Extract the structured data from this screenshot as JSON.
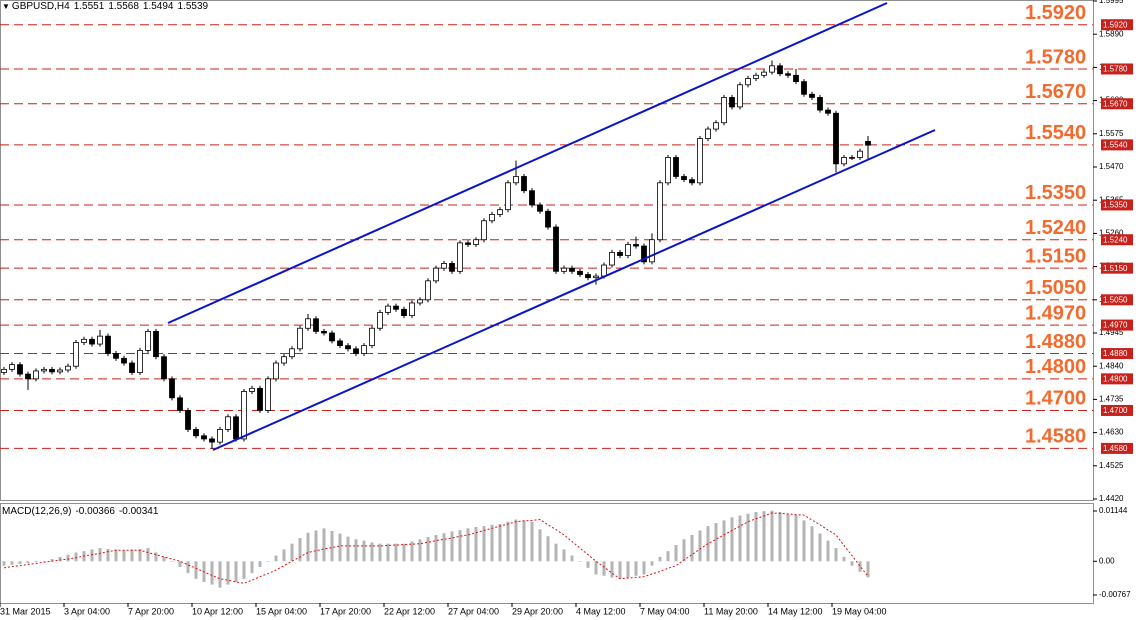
{
  "chart_data": [
    {
      "type": "candlestick",
      "title": "GBPUSD,H4",
      "readout": [
        1.5551,
        1.5568,
        1.5494,
        1.5539
      ],
      "up_color": "#ffffff",
      "down_color": "#000000",
      "line_color": "#000000",
      "level_color": "#c8201a",
      "level_label_color": "#f26a2e",
      "ylim": [
        1.442,
        1.5995
      ],
      "yticks": [
        1.5995,
        {
          "value": 1.589,
          "label": "1.5890"
        },
        1.5785,
        {
          "value": 1.568,
          "label": "1.5680"
        },
        1.5575,
        {
          "value": 1.547,
          "label": "1.5470"
        },
        1.5365,
        {
          "value": 1.526,
          "label": "1.5260"
        },
        1.5155,
        {
          "value": 1.505,
          "label": "1.5050"
        },
        1.4945,
        {
          "value": 1.484,
          "label": "1.4840"
        },
        1.4735,
        {
          "value": 1.463,
          "label": "1.4630"
        },
        1.4525,
        {
          "value": 1.442,
          "label": "1.4420"
        }
      ],
      "levels": [
        {
          "value": 1.592,
          "label": "1.5920"
        },
        {
          "value": 1.578,
          "label": "1.5780"
        },
        {
          "value": 1.567,
          "label": "1.5670"
        },
        {
          "value": 1.554,
          "label": "1.5540"
        },
        {
          "value": 1.535,
          "label": "1.5350"
        },
        {
          "value": 1.524,
          "label": "1.5240"
        },
        {
          "value": 1.515,
          "label": "1.5150"
        },
        {
          "value": 1.505,
          "label": "1.5050"
        },
        {
          "value": 1.497,
          "label": "1.4970"
        },
        {
          "value": 1.488,
          "label": "1.4880"
        },
        {
          "value": 1.48,
          "label": "1.4800"
        },
        {
          "value": 1.47,
          "label": "1.4700"
        },
        {
          "value": 1.458,
          "label": "1.4580"
        }
      ],
      "categories": [
        "31 Mar 2015",
        null,
        null,
        null,
        null,
        null,
        null,
        null,
        "3 Apr 04:00",
        null,
        null,
        null,
        null,
        null,
        null,
        null,
        "7 Apr 20:00",
        null,
        null,
        null,
        null,
        null,
        null,
        null,
        "10 Apr 12:00",
        null,
        null,
        null,
        null,
        null,
        null,
        null,
        "15 Apr 04:00",
        null,
        null,
        null,
        null,
        null,
        null,
        null,
        "17 Apr 20:00",
        null,
        null,
        null,
        null,
        null,
        null,
        null,
        "22 Apr 12:00",
        null,
        null,
        null,
        null,
        null,
        null,
        null,
        "27 Apr 04:00",
        null,
        null,
        null,
        null,
        null,
        null,
        null,
        "29 Apr 20:00",
        null,
        null,
        null,
        null,
        null,
        null,
        null,
        "4 May 12:00",
        null,
        null,
        null,
        null,
        null,
        null,
        null,
        "7 May 04:00",
        null,
        null,
        null,
        null,
        null,
        null,
        null,
        "11 May 20:00",
        null,
        null,
        null,
        null,
        null,
        null,
        null,
        "14 May 12:00",
        null,
        null,
        null,
        null,
        null,
        null,
        null,
        "19 May 04:00",
        null,
        null,
        null,
        null
      ],
      "open": [
        1.482,
        1.483,
        1.4845,
        1.4815,
        1.48,
        1.4825,
        1.483,
        1.4822,
        1.4828,
        1.484,
        1.4915,
        1.4925,
        1.491,
        1.4935,
        1.488,
        1.4865,
        1.485,
        1.482,
        1.489,
        1.495,
        1.487,
        1.48,
        1.474,
        1.47,
        1.464,
        1.462,
        1.461,
        1.46,
        1.464,
        1.468,
        1.461,
        1.476,
        1.477,
        1.47,
        1.48,
        1.485,
        1.487,
        1.4895,
        1.496,
        1.499,
        1.495,
        1.4945,
        1.492,
        1.4905,
        1.4895,
        1.488,
        1.4905,
        1.496,
        1.501,
        1.503,
        1.502,
        1.5,
        1.504,
        1.505,
        1.511,
        1.515,
        1.5165,
        1.514,
        1.523,
        1.5225,
        1.524,
        1.53,
        1.532,
        1.5335,
        1.542,
        1.544,
        1.5395,
        1.535,
        1.533,
        1.528,
        1.514,
        1.515,
        1.514,
        1.513,
        1.512,
        1.5125,
        1.516,
        1.52,
        1.519,
        1.5225,
        1.522,
        1.517,
        1.524,
        1.542,
        1.55,
        1.544,
        1.543,
        1.542,
        1.556,
        1.559,
        1.561,
        1.569,
        1.566,
        1.573,
        1.575,
        1.576,
        1.577,
        1.579,
        1.5765,
        1.576,
        1.574,
        1.57,
        1.569,
        1.565,
        1.564,
        1.548,
        1.55,
        1.55,
        1.5551
      ],
      "high": [
        1.4838,
        1.4853,
        1.4853,
        1.4823,
        1.4833,
        1.4838,
        1.4838,
        1.4836,
        1.4848,
        1.4923,
        1.4933,
        1.4933,
        1.4955,
        1.4943,
        1.4888,
        1.4873,
        1.4858,
        1.4898,
        1.4958,
        1.4958,
        1.4878,
        1.4808,
        1.4748,
        1.4708,
        1.4648,
        1.4628,
        1.4618,
        1.4648,
        1.4688,
        1.4688,
        1.4768,
        1.4778,
        1.4778,
        1.4808,
        1.4858,
        1.4878,
        1.4903,
        1.4968,
        1.5005,
        1.4998,
        1.4958,
        1.4953,
        1.4928,
        1.4913,
        1.4903,
        1.4913,
        1.4968,
        1.5018,
        1.5038,
        1.5038,
        1.5028,
        1.5048,
        1.5058,
        1.5118,
        1.5158,
        1.5173,
        1.5173,
        1.5238,
        1.5238,
        1.5248,
        1.5308,
        1.5328,
        1.5343,
        1.5428,
        1.549,
        1.5448,
        1.5403,
        1.5358,
        1.5338,
        1.5288,
        1.5158,
        1.5158,
        1.5148,
        1.5138,
        1.5133,
        1.5168,
        1.5208,
        1.5208,
        1.5233,
        1.525,
        1.5228,
        1.526,
        1.5428,
        1.5508,
        1.5508,
        1.5448,
        1.5438,
        1.5568,
        1.5598,
        1.5618,
        1.5698,
        1.5698,
        1.5738,
        1.5758,
        1.5768,
        1.5778,
        1.5807,
        1.5798,
        1.5773,
        1.578,
        1.5748,
        1.5708,
        1.5698,
        1.5658,
        1.5648,
        1.5508,
        1.5508,
        1.5528,
        1.5568
      ],
      "low": [
        1.4812,
        1.4822,
        1.4807,
        1.4765,
        1.4792,
        1.4817,
        1.4814,
        1.4814,
        1.482,
        1.4832,
        1.4907,
        1.4902,
        1.4902,
        1.4872,
        1.4857,
        1.4842,
        1.4812,
        1.4812,
        1.4882,
        1.4862,
        1.4792,
        1.4732,
        1.4692,
        1.4632,
        1.4612,
        1.4602,
        1.4578,
        1.4592,
        1.4632,
        1.4602,
        1.4602,
        1.4752,
        1.4692,
        1.4692,
        1.4792,
        1.4842,
        1.4862,
        1.4887,
        1.4952,
        1.4942,
        1.4937,
        1.4912,
        1.4897,
        1.4887,
        1.4872,
        1.4872,
        1.4897,
        1.4952,
        1.5002,
        1.5012,
        1.4992,
        1.4992,
        1.5032,
        1.5042,
        1.5102,
        1.5142,
        1.5132,
        1.5132,
        1.5217,
        1.5217,
        1.5232,
        1.5292,
        1.5312,
        1.5327,
        1.5412,
        1.5387,
        1.5342,
        1.5322,
        1.5272,
        1.5132,
        1.5132,
        1.5132,
        1.5122,
        1.5112,
        1.5098,
        1.5117,
        1.5152,
        1.5182,
        1.5182,
        1.5212,
        1.5162,
        1.5162,
        1.5232,
        1.5412,
        1.5432,
        1.5422,
        1.5412,
        1.5412,
        1.5552,
        1.5582,
        1.5602,
        1.5652,
        1.5652,
        1.5722,
        1.5742,
        1.5752,
        1.5762,
        1.5757,
        1.5752,
        1.5732,
        1.5692,
        1.5682,
        1.5642,
        1.5632,
        1.5453,
        1.5472,
        1.5492,
        1.5492,
        1.5494
      ],
      "close": [
        1.483,
        1.4845,
        1.4815,
        1.48,
        1.4825,
        1.483,
        1.4822,
        1.4828,
        1.484,
        1.4915,
        1.4925,
        1.491,
        1.4935,
        1.488,
        1.4865,
        1.485,
        1.482,
        1.489,
        1.495,
        1.487,
        1.48,
        1.474,
        1.47,
        1.464,
        1.462,
        1.461,
        1.46,
        1.464,
        1.468,
        1.461,
        1.476,
        1.477,
        1.47,
        1.48,
        1.485,
        1.487,
        1.4895,
        1.496,
        1.499,
        1.495,
        1.4945,
        1.492,
        1.4905,
        1.4895,
        1.488,
        1.4905,
        1.496,
        1.501,
        1.503,
        1.502,
        1.5,
        1.504,
        1.505,
        1.511,
        1.515,
        1.5165,
        1.514,
        1.523,
        1.5225,
        1.524,
        1.53,
        1.532,
        1.5335,
        1.542,
        1.544,
        1.5395,
        1.535,
        1.533,
        1.528,
        1.514,
        1.515,
        1.514,
        1.513,
        1.512,
        1.5125,
        1.516,
        1.52,
        1.519,
        1.5225,
        1.522,
        1.517,
        1.524,
        1.542,
        1.55,
        1.544,
        1.543,
        1.542,
        1.556,
        1.559,
        1.561,
        1.569,
        1.566,
        1.573,
        1.575,
        1.576,
        1.577,
        1.579,
        1.5765,
        1.576,
        1.574,
        1.57,
        1.569,
        1.565,
        1.564,
        1.548,
        1.55,
        1.55,
        1.552,
        1.5539
      ]
    },
    {
      "type": "macd",
      "title": "MACD(12,26,9)",
      "readout": [
        -0.00366,
        -0.00341
      ],
      "histogram_color": "#b4b4b4",
      "signal_color": "#e01010",
      "ylim": [
        -0.00767,
        0.01144
      ],
      "yticks": [
        0.01144,
        {
          "value": 0,
          "label": "0.00"
        },
        -0.00767
      ],
      "histogram": [
        -0.001,
        -0.0008,
        -0.0006,
        -0.0004,
        -0.0002,
        0.0,
        0.0005,
        0.001,
        0.0015,
        0.002,
        0.0023,
        0.0027,
        0.003,
        0.0028,
        0.0027,
        0.0025,
        0.0027,
        0.0028,
        0.003,
        0.002,
        0.001,
        0.0,
        -0.0013,
        -0.0027,
        -0.004,
        -0.0047,
        -0.0053,
        -0.006,
        -0.0053,
        -0.0047,
        -0.004,
        -0.0027,
        -0.0013,
        0.0,
        0.0013,
        0.0027,
        0.004,
        0.0053,
        0.0065,
        0.007,
        0.0075,
        0.0069,
        0.0063,
        0.0056,
        0.005,
        0.0047,
        0.0043,
        0.004,
        0.004,
        0.004,
        0.004,
        0.0045,
        0.005,
        0.0055,
        0.006,
        0.0064,
        0.0068,
        0.0071,
        0.0075,
        0.0078,
        0.008,
        0.0083,
        0.0085,
        0.009,
        0.0095,
        0.0093,
        0.009,
        0.0073,
        0.0057,
        0.004,
        0.0027,
        0.0013,
        0.0,
        -0.0015,
        -0.003,
        -0.0033,
        -0.0037,
        -0.004,
        -0.0037,
        -0.0033,
        -0.003,
        -0.001,
        0.001,
        0.0023,
        0.0037,
        0.005,
        0.006,
        0.007,
        0.008,
        0.0087,
        0.0093,
        0.01,
        0.0104,
        0.0108,
        0.0112,
        0.0114,
        0.0115,
        0.0112,
        0.0108,
        0.0105,
        0.0093,
        0.008,
        0.0063,
        0.0047,
        0.003,
        0.001,
        -0.001,
        -0.0024,
        -0.00366
      ],
      "signal": [
        -0.0015,
        -0.0012,
        -0.001,
        -0.0007,
        -0.0005,
        -0.0002,
        0.0,
        0.0003,
        0.0005,
        0.0008,
        0.0012,
        0.0015,
        0.0018,
        0.0022,
        0.0025,
        0.0025,
        0.0025,
        0.0025,
        0.002,
        0.0015,
        0.001,
        0.0005,
        0.0,
        -0.0008,
        -0.0016,
        -0.0024,
        -0.0032,
        -0.004,
        -0.0043,
        -0.0047,
        -0.005,
        -0.0043,
        -0.0035,
        -0.0028,
        -0.002,
        -0.001,
        0.0,
        0.001,
        0.002,
        0.0024,
        0.0028,
        0.0031,
        0.0035,
        0.0035,
        0.0035,
        0.0035,
        0.0035,
        0.0035,
        0.0036,
        0.0037,
        0.0038,
        0.0039,
        0.004,
        0.0043,
        0.0047,
        0.005,
        0.0053,
        0.0057,
        0.006,
        0.0065,
        0.007,
        0.0075,
        0.008,
        0.0085,
        0.009,
        0.0092,
        0.0093,
        0.0095,
        0.0083,
        0.0072,
        0.006,
        0.0045,
        0.003,
        0.0015,
        0.0,
        -0.0013,
        -0.0027,
        -0.004,
        -0.0038,
        -0.0037,
        -0.0035,
        -0.0029,
        -0.0023,
        -0.0016,
        -0.001,
        0.0003,
        0.0015,
        0.0028,
        0.004,
        0.005,
        0.006,
        0.007,
        0.008,
        0.009,
        0.0097,
        0.0103,
        0.011,
        0.0109,
        0.0108,
        0.0106,
        0.0105,
        0.0094,
        0.0083,
        0.0071,
        0.006,
        0.0036,
        0.0013,
        -0.0011,
        -0.00341
      ]
    }
  ]
}
